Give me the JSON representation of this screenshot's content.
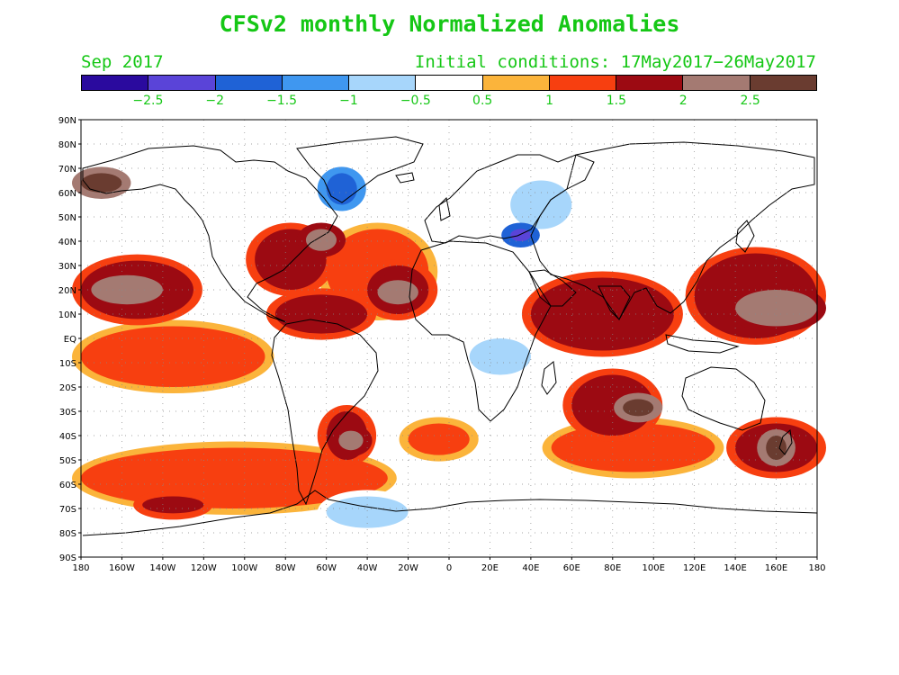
{
  "title": "CFSv2 monthly Normalized Anomalies",
  "valid_month": "Sep 2017",
  "initial_conditions": "Initial conditions: 17May2017−26May2017",
  "legend": {
    "labels": [
      "−2.5",
      "−2",
      "−1.5",
      "−1",
      "−0.5",
      "0.5",
      "1",
      "1.5",
      "2",
      "2.5"
    ],
    "colors": [
      "#2a0a9e",
      "#5a44d8",
      "#1f62d6",
      "#3f97f0",
      "#a7d6fb",
      "#ffffff",
      "#fbb43b",
      "#f73f10",
      "#9c0a12",
      "#a47a72",
      "#6a3c30"
    ]
  },
  "axes": {
    "lat_labels": [
      "90N",
      "80N",
      "70N",
      "60N",
      "50N",
      "40N",
      "30N",
      "20N",
      "10N",
      "EQ",
      "10S",
      "20S",
      "30S",
      "40S",
      "50S",
      "60S",
      "70S",
      "80S",
      "90S"
    ],
    "lon_labels": [
      "180",
      "160W",
      "140W",
      "120W",
      "100W",
      "80W",
      "60W",
      "40W",
      "20W",
      "0",
      "20E",
      "40E",
      "60E",
      "80E",
      "100E",
      "120E",
      "140E",
      "160E",
      "180"
    ]
  },
  "chart_data": {
    "type": "heatmap",
    "projection": "cylindrical equidistant",
    "extent": {
      "lon": [
        -180,
        180
      ],
      "lat": [
        -90,
        90
      ]
    },
    "title": "CFSv2 monthly Normalized Anomalies",
    "subtitle_left": "Sep 2017",
    "subtitle_right": "Initial conditions: 17May2017−26May2017",
    "color_levels": [
      -2.5,
      -2,
      -1.5,
      -1,
      -0.5,
      0.5,
      1,
      1.5,
      2,
      2.5
    ],
    "anomaly_regions": [
      {
        "lon": [
          -180,
          -125
        ],
        "lat": [
          8,
          32
        ],
        "level": 1.5
      },
      {
        "lon": [
          -175,
          -140
        ],
        "lat": [
          14,
          26
        ],
        "level": 2
      },
      {
        "lon": [
          -180,
          -90
        ],
        "lat": [
          -20,
          5
        ],
        "level": 1
      },
      {
        "lon": [
          -95,
          -60
        ],
        "lat": [
          20,
          45
        ],
        "level": 1.5
      },
      {
        "lon": [
          -70,
          -55
        ],
        "lat": [
          36,
          45
        ],
        "level": 2
      },
      {
        "lon": [
          -60,
          -10
        ],
        "lat": [
          10,
          45
        ],
        "level": 1
      },
      {
        "lon": [
          -40,
          -10
        ],
        "lat": [
          10,
          30
        ],
        "level": 1.5
      },
      {
        "lon": [
          -35,
          -15
        ],
        "lat": [
          14,
          24
        ],
        "level": 2
      },
      {
        "lon": [
          -85,
          -40
        ],
        "lat": [
          2,
          18
        ],
        "level": 1.5
      },
      {
        "lon": [
          -60,
          -40
        ],
        "lat": [
          -50,
          -30
        ],
        "level": 1.5
      },
      {
        "lon": [
          -54,
          -42
        ],
        "lat": [
          -46,
          -38
        ],
        "level": 2
      },
      {
        "lon": [
          -20,
          10
        ],
        "lat": [
          -48,
          -35
        ],
        "level": 1
      },
      {
        "lon": [
          40,
          110
        ],
        "lat": [
          -5,
          25
        ],
        "level": 1.5
      },
      {
        "lon": [
          60,
          100
        ],
        "lat": [
          -40,
          -15
        ],
        "level": 1.5
      },
      {
        "lon": [
          85,
          100
        ],
        "lat": [
          -32,
          -25
        ],
        "level": 2.5
      },
      {
        "lon": [
          50,
          130
        ],
        "lat": [
          -55,
          -35
        ],
        "level": 1
      },
      {
        "lon": [
          120,
          180
        ],
        "lat": [
          0,
          35
        ],
        "level": 1.5
      },
      {
        "lon": [
          140,
          180
        ],
        "lat": [
          5,
          20
        ],
        "level": 2
      },
      {
        "lon": [
          140,
          180
        ],
        "lat": [
          -55,
          -35
        ],
        "level": 1.5
      },
      {
        "lon": [
          155,
          165
        ],
        "lat": [
          -50,
          -40
        ],
        "level": 2.5
      },
      {
        "lon": [
          -180,
          -30
        ],
        "lat": [
          -70,
          -45
        ],
        "level": 1
      },
      {
        "lon": [
          -150,
          -120
        ],
        "lat": [
          -72,
          -65
        ],
        "level": 1.5
      },
      {
        "lon": [
          30,
          60
        ],
        "lat": [
          45,
          65
        ],
        "level": -1
      },
      {
        "lon": [
          30,
          40
        ],
        "lat": [
          40,
          45
        ],
        "level": -2.5
      },
      {
        "lon": [
          10,
          40
        ],
        "lat": [
          -15,
          0
        ],
        "level": -1
      },
      {
        "lon": [
          -60,
          -20
        ],
        "lat": [
          -78,
          -65
        ],
        "level": -1
      },
      {
        "lon": [
          -60,
          -45
        ],
        "lat": [
          55,
          68
        ],
        "level": -2
      },
      {
        "lon": [
          -180,
          -160
        ],
        "lat": [
          60,
          68
        ],
        "level": 2.5
      }
    ]
  }
}
